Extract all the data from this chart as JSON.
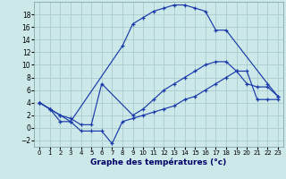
{
  "xlabel": "Graphe des températures (°c)",
  "bg_color": "#cce8e8",
  "grid_color": "#aacccc",
  "line_color": "#1a3aaa",
  "ylim": [
    -3,
    20
  ],
  "yticks": [
    -2,
    0,
    2,
    4,
    6,
    8,
    10,
    12,
    14,
    16,
    18
  ],
  "xticks": [
    0,
    1,
    2,
    3,
    4,
    5,
    6,
    7,
    8,
    9,
    10,
    11,
    12,
    13,
    14,
    15,
    16,
    17,
    18,
    19,
    20,
    21,
    22,
    23
  ],
  "xlim": [
    -0.5,
    23.5
  ],
  "line1_x": [
    0,
    1,
    2,
    3,
    8,
    9,
    10,
    11,
    12,
    13,
    14,
    15,
    16,
    17,
    18,
    22,
    23
  ],
  "line1_y": [
    4,
    3,
    1,
    1,
    13,
    16.5,
    17.5,
    18.5,
    19,
    19.5,
    19.5,
    19,
    18.5,
    15.5,
    15.5,
    7,
    5
  ],
  "line2_x": [
    0,
    1,
    2,
    3,
    4,
    5,
    6,
    9,
    10,
    11,
    12,
    13,
    14,
    15,
    16,
    17,
    18,
    19,
    20,
    21,
    22,
    23
  ],
  "line2_y": [
    4,
    3,
    2,
    1.5,
    0.5,
    0.5,
    7,
    2,
    3,
    4.5,
    6,
    7,
    8,
    9,
    10,
    10.5,
    10.5,
    9,
    7,
    6.5,
    6.5,
    5
  ],
  "line3_x": [
    0,
    1,
    2,
    3,
    4,
    5,
    6,
    7,
    8,
    9,
    10,
    11,
    12,
    13,
    14,
    15,
    16,
    17,
    18,
    19,
    20,
    21,
    22,
    23
  ],
  "line3_y": [
    4,
    3,
    2,
    1,
    -0.5,
    -0.5,
    -0.5,
    -2.5,
    1,
    1.5,
    2,
    2.5,
    3,
    3.5,
    4.5,
    5,
    6,
    7,
    8,
    9,
    9,
    4.5,
    4.5,
    4.5
  ]
}
